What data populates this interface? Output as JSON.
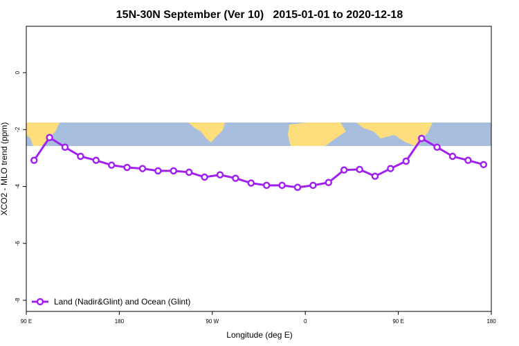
{
  "chart_data": {
    "type": "line",
    "title": "15N-30N September (Ver 10)   2015-01-01 to 2020-12-18",
    "xlabel": "Longitude (deg E)",
    "ylabel": "XCO2 - MLO trend (ppm)",
    "x": [
      97.5,
      112.5,
      127.5,
      142.5,
      157.5,
      172.5,
      187.5,
      202.5,
      217.5,
      232.5,
      247.5,
      262.5,
      277.5,
      292.5,
      307.5,
      322.5,
      337.5,
      352.5,
      367.5,
      382.5,
      397.5,
      412.5,
      427.5,
      442.5,
      457.5,
      472.5,
      487.5,
      502.5,
      517.5,
      532.5
    ],
    "series": [
      {
        "name": "Land (Nadir&Glint) and Ocean (Glint)",
        "color": "#a020f0",
        "values": [
          -3.08,
          -2.28,
          -2.62,
          -2.94,
          -3.08,
          -3.25,
          -3.33,
          -3.37,
          -3.45,
          -3.45,
          -3.5,
          -3.67,
          -3.59,
          -3.71,
          -3.88,
          -3.96,
          -3.96,
          -4.03,
          -3.96,
          -3.86,
          -3.42,
          -3.4,
          -3.64,
          -3.37,
          -3.11,
          -2.31,
          -2.62,
          -2.94,
          -3.08,
          -3.23
        ]
      }
    ],
    "xlim": [
      90,
      540
    ],
    "xticks": [
      {
        "value": 90,
        "label": "90 E"
      },
      180,
      {
        "value": 270,
        "label": "90 W"
      },
      {
        "value": 360,
        "label": "0"
      },
      {
        "value": 450,
        "label": "90 E"
      },
      {
        "value": 540,
        "label": "180"
      }
    ],
    "ylim": [
      -8.39,
      1.63
    ],
    "yticks": [
      -8,
      -6,
      -4,
      -2,
      0
    ],
    "legend": "bottom-left"
  }
}
